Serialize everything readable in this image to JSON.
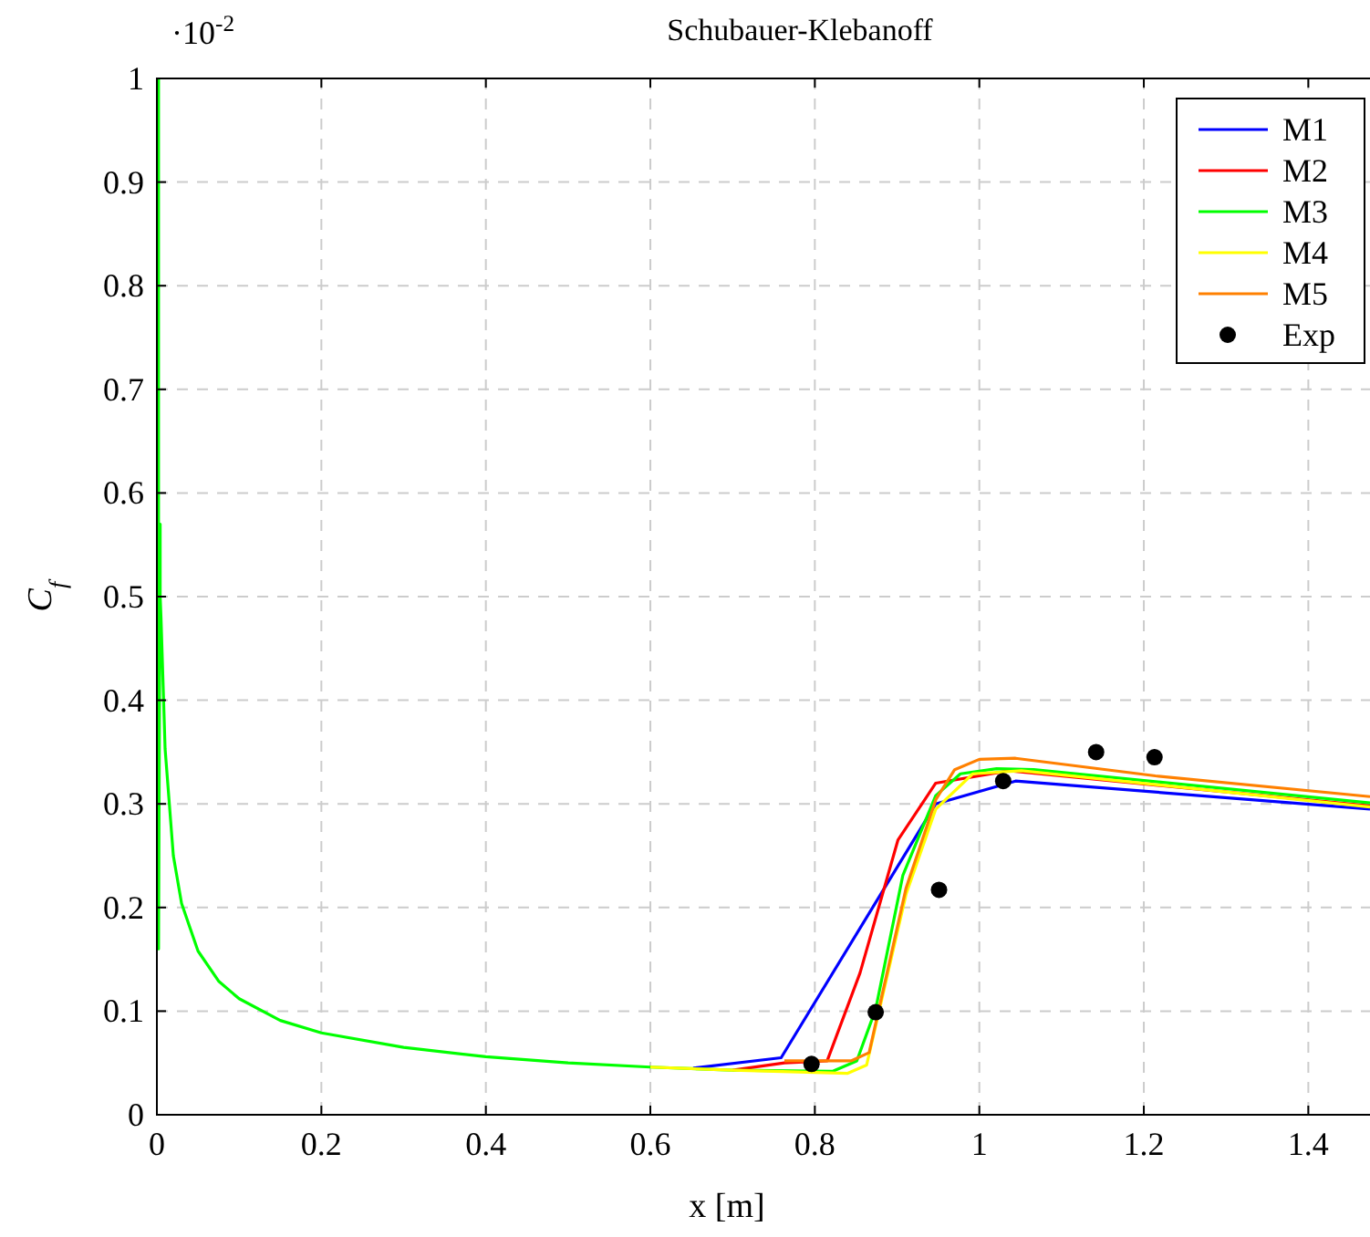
{
  "chart_data": {
    "type": "line",
    "title": "Schubauer-Klebanoff",
    "xlabel": "x [m]",
    "ylabel": "C$_{f}$",
    "annotations": [
      "·10$^{-2}$"
    ],
    "xlim": [
      0,
      1.475
    ],
    "ylim": [
      0,
      1
    ],
    "xticks": [
      0,
      0.2,
      0.4,
      0.6,
      0.8,
      1,
      1.2,
      1.4
    ],
    "yticks": [
      0,
      0.1,
      0.2,
      0.3,
      0.4,
      0.5,
      0.6,
      0.7,
      0.8,
      0.9,
      1
    ],
    "grid": true,
    "legend": "top right",
    "line_style": "solid",
    "marker": "none",
    "series": [
      {
        "name": "M1",
        "color": "#0000ff",
        "x": [
          0.652,
          0.759,
          0.947,
          1.044,
          1.475
        ],
        "values": [
          0.045,
          0.055,
          0.3,
          0.322,
          0.295
        ]
      },
      {
        "name": "M2",
        "color": "#ff0000",
        "x": [
          0.7,
          0.763,
          0.815,
          0.855,
          0.901,
          0.947,
          1.036,
          1.475
        ],
        "values": [
          0.043,
          0.05,
          0.052,
          0.137,
          0.265,
          0.32,
          0.332,
          0.298
        ]
      },
      {
        "name": "M3",
        "color": "#00ff00",
        "x": [
          0.002,
          0.002,
          0.004,
          0.004,
          0.005,
          0.01,
          0.02,
          0.03,
          0.05,
          0.075,
          0.1,
          0.15,
          0.2,
          0.3,
          0.4,
          0.5,
          0.6,
          0.7,
          0.822,
          0.851,
          0.874,
          0.907,
          0.947,
          0.977,
          1.021,
          1.066,
          1.475
        ],
        "values": [
          1,
          0.16,
          0.57,
          0.5,
          0.48,
          0.353,
          0.25,
          0.204,
          0.158,
          0.129,
          0.112,
          0.091,
          0.079,
          0.065,
          0.056,
          0.05,
          0.046,
          0.043,
          0.042,
          0.052,
          0.102,
          0.231,
          0.308,
          0.329,
          0.334,
          0.333,
          0.301
        ]
      },
      {
        "name": "M4",
        "color": "#ffff00",
        "x": [
          0.6,
          0.7,
          0.84,
          0.863,
          0.911,
          0.947,
          0.992,
          1.051,
          1.475
        ],
        "values": [
          0.046,
          0.043,
          0.04,
          0.048,
          0.213,
          0.295,
          0.329,
          0.332,
          0.297
        ]
      },
      {
        "name": "M5",
        "color": "#ff8000",
        "x": [
          0.763,
          0.844,
          0.866,
          0.911,
          0.947,
          0.97,
          1,
          1.044,
          1.214,
          1.475
        ],
        "values": [
          0.052,
          0.052,
          0.06,
          0.219,
          0.304,
          0.333,
          0.343,
          0.344,
          0.327,
          0.307
        ]
      },
      {
        "name": "Exp",
        "type": "scatter",
        "color": "#000000",
        "marker": "circle",
        "x": [
          0.796,
          0.874,
          0.951,
          1.029,
          1.142,
          1.213
        ],
        "values": [
          0.049,
          0.099,
          0.217,
          0.322,
          0.35,
          0.345
        ]
      }
    ]
  }
}
